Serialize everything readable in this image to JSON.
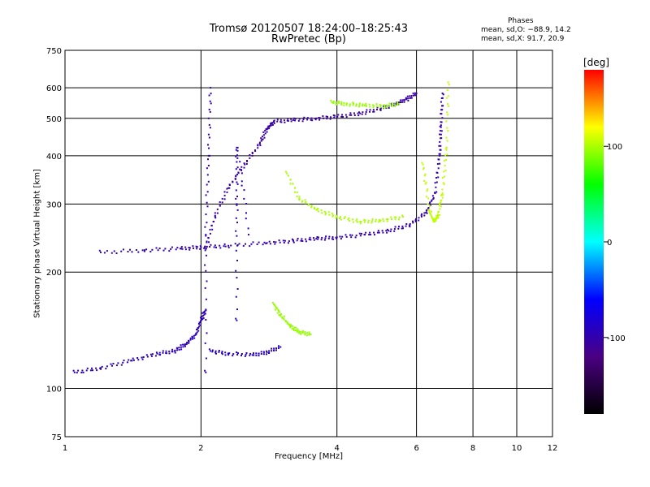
{
  "title": {
    "line1": "Tromsø 20120507 18:24:00–18:25:43",
    "line2": "RwPretec (Bp)"
  },
  "phases_box": {
    "heading": "Phases",
    "line1": "mean, sd,O: −88.9, 14.2",
    "line2": "mean, sd,X:  91.7, 20.9"
  },
  "colorbar": {
    "unit_label": "[deg]",
    "ticks": [
      "100",
      "0",
      "-100"
    ],
    "range": [
      -180,
      180
    ],
    "colors": [
      "#000000",
      "#4b0082",
      "#0000ff",
      "#00ffff",
      "#00ff00",
      "#ffff00",
      "#ff0000"
    ]
  },
  "chart_data": {
    "type": "scatter",
    "xlabel": "Frequency [MHz]",
    "ylabel": "Stationary phase Virtual Height [km]",
    "xscale": "log",
    "yscale": "log",
    "xlim": [
      1,
      12
    ],
    "ylim": [
      75,
      750
    ],
    "xticks": [
      1,
      2,
      4,
      6,
      8,
      10,
      12
    ],
    "yticks": [
      75,
      100,
      200,
      300,
      400,
      500,
      600,
      750
    ],
    "grid": true,
    "color_encodes": "phase [deg]",
    "traces": [
      {
        "points": [
          [
            1.05,
            110
          ],
          [
            1.2,
            113
          ],
          [
            1.4,
            118
          ],
          [
            1.6,
            123
          ],
          [
            1.75,
            125
          ],
          [
            1.85,
            130
          ],
          [
            1.95,
            138
          ],
          [
            2.0,
            150
          ],
          [
            2.05,
            160
          ]
        ],
        "phase": -95
      },
      {
        "points": [
          [
            1.2,
            225
          ],
          [
            1.5,
            228
          ],
          [
            1.8,
            230
          ],
          [
            2.0,
            232
          ],
          [
            2.3,
            234
          ],
          [
            2.8,
            238
          ],
          [
            3.2,
            241
          ],
          [
            3.6,
            244
          ],
          [
            4.0,
            246
          ],
          [
            4.6,
            250
          ],
          [
            5.2,
            256
          ],
          [
            5.8,
            265
          ],
          [
            6.3,
            285
          ],
          [
            6.6,
            320
          ],
          [
            6.75,
            400
          ],
          [
            6.8,
            480
          ],
          [
            6.85,
            580
          ]
        ],
        "phase": -100
      },
      {
        "points": [
          [
            2.05,
            230
          ],
          [
            2.15,
            280
          ],
          [
            2.3,
            330
          ],
          [
            2.5,
            380
          ],
          [
            2.7,
            430
          ],
          [
            2.8,
            470
          ],
          [
            2.9,
            490
          ],
          [
            3.2,
            495
          ],
          [
            3.6,
            500
          ],
          [
            4.0,
            505
          ],
          [
            4.5,
            515
          ],
          [
            5.0,
            530
          ],
          [
            5.4,
            545
          ],
          [
            5.7,
            560
          ],
          [
            6.0,
            580
          ]
        ],
        "phase": -105
      },
      {
        "points": [
          [
            3.1,
            360
          ],
          [
            3.3,
            310
          ],
          [
            3.6,
            290
          ],
          [
            4.0,
            278
          ],
          [
            4.5,
            270
          ],
          [
            5.0,
            272
          ],
          [
            5.6,
            278
          ]
        ],
        "phase": 100
      },
      {
        "points": [
          [
            3.9,
            550
          ],
          [
            4.2,
            545
          ],
          [
            4.6,
            540
          ],
          [
            5.1,
            538
          ],
          [
            5.5,
            545
          ]
        ],
        "phase": 95
      },
      {
        "points": [
          [
            6.2,
            380
          ],
          [
            6.4,
            290
          ],
          [
            6.55,
            270
          ],
          [
            6.7,
            280
          ],
          [
            6.85,
            320
          ],
          [
            7.0,
            420
          ],
          [
            7.05,
            620
          ]
        ],
        "phase": 105
      },
      {
        "points": [
          [
            2.1,
            125
          ],
          [
            2.3,
            123
          ],
          [
            2.6,
            122
          ],
          [
            2.8,
            124
          ],
          [
            3.0,
            128
          ]
        ],
        "phase": -90
      },
      {
        "points": [
          [
            2.9,
            165
          ],
          [
            3.0,
            155
          ],
          [
            3.15,
            145
          ],
          [
            3.3,
            140
          ],
          [
            3.5,
            138
          ]
        ],
        "phase": 95
      },
      {
        "points": [
          [
            2.05,
            110
          ],
          [
            2.05,
            250
          ],
          [
            2.08,
            400
          ],
          [
            2.1,
            600
          ]
        ],
        "phase": -100
      },
      {
        "points": [
          [
            2.4,
            150
          ],
          [
            2.4,
            300
          ],
          [
            2.4,
            420
          ],
          [
            2.55,
            250
          ]
        ],
        "phase": -95
      }
    ]
  }
}
